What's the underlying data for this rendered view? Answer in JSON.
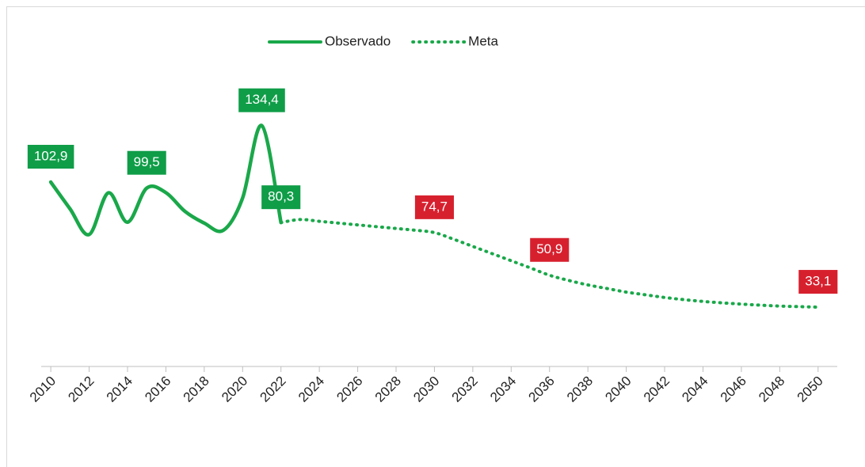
{
  "chart_data": {
    "type": "line",
    "xlim": [
      2009.5,
      2051
    ],
    "xticks": [
      2010,
      2012,
      2014,
      2016,
      2018,
      2020,
      2022,
      2024,
      2026,
      2028,
      2030,
      2032,
      2034,
      2036,
      2038,
      2040,
      2042,
      2044,
      2046,
      2048,
      2050
    ],
    "ylim": [
      0,
      140
    ],
    "legend": "top",
    "series": [
      {
        "name": "Observado",
        "color": "#1aa84a",
        "style": "solid",
        "label_color": "#0f9d48",
        "x": [
          2010,
          2011,
          2012,
          2013,
          2014,
          2015,
          2016,
          2017,
          2018,
          2019,
          2020,
          2021,
          2022
        ],
        "values": [
          102.9,
          88,
          73.6,
          96.9,
          80.5,
          99.5,
          97,
          86.5,
          80,
          76,
          94,
          134.4,
          80.3
        ],
        "value_labels": [
          "102,9",
          null,
          null,
          null,
          null,
          "99,5",
          null,
          null,
          null,
          null,
          null,
          "134,4",
          "80,3"
        ]
      },
      {
        "name": "Meta",
        "color": "#1aa84a",
        "style": "dotted",
        "label_color": "#d7202e",
        "x": [
          2022,
          2023,
          2024,
          2025,
          2026,
          2027,
          2028,
          2029,
          2030,
          2031,
          2032,
          2033,
          2034,
          2035,
          2036,
          2037,
          2038,
          2039,
          2040,
          2041,
          2042,
          2043,
          2044,
          2045,
          2046,
          2047,
          2048,
          2049,
          2050
        ],
        "values": [
          80.3,
          82,
          81,
          80,
          79,
          78,
          77,
          76,
          74.7,
          71,
          67,
          63,
          59,
          55,
          50.9,
          48,
          45.5,
          43.5,
          41.5,
          40,
          38.5,
          37.3,
          36.3,
          35.5,
          34.8,
          34.2,
          33.7,
          33.4,
          33.1
        ],
        "value_labels": [
          null,
          null,
          null,
          null,
          null,
          null,
          null,
          null,
          "74,7",
          null,
          null,
          null,
          null,
          null,
          "50,9",
          null,
          null,
          null,
          null,
          null,
          null,
          null,
          null,
          null,
          null,
          null,
          null,
          null,
          "33,1"
        ]
      }
    ]
  }
}
